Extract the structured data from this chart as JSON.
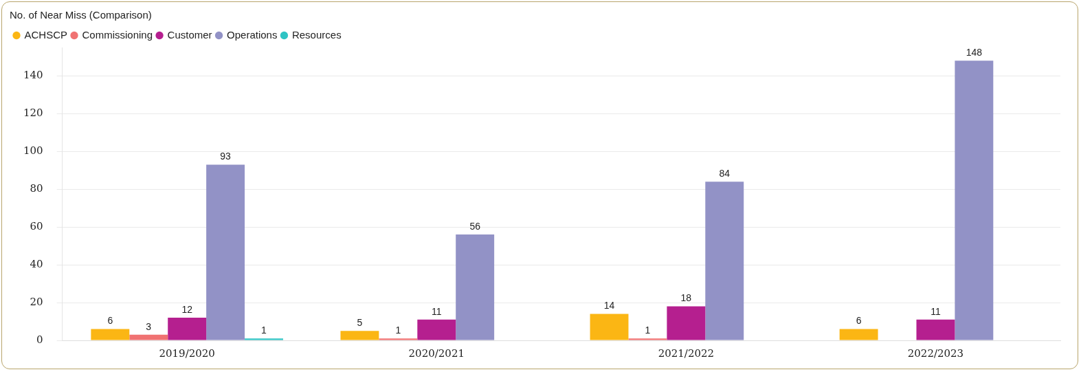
{
  "chart_data": {
    "type": "bar",
    "title": "No. of Near Miss (Comparison)",
    "categories": [
      "2019/2020",
      "2020/2021",
      "2021/2022",
      "2022/2023"
    ],
    "series": [
      {
        "name": "ACHSCP",
        "color": "#fbb614",
        "values": [
          6,
          5,
          14,
          6
        ]
      },
      {
        "name": "Commissioning",
        "color": "#f07272",
        "values": [
          3,
          1,
          1,
          null
        ]
      },
      {
        "name": "Customer",
        "color": "#b51f8f",
        "values": [
          12,
          11,
          18,
          11
        ]
      },
      {
        "name": "Operations",
        "color": "#9292c6",
        "values": [
          93,
          56,
          84,
          148
        ]
      },
      {
        "name": "Resources",
        "color": "#2fc4c4",
        "values": [
          1,
          null,
          null,
          null
        ]
      }
    ],
    "ylim": [
      0,
      155
    ],
    "yticks": [
      0,
      20,
      40,
      60,
      80,
      100,
      120,
      140
    ],
    "grid": "y",
    "legend": "top left",
    "data_labels": true
  }
}
